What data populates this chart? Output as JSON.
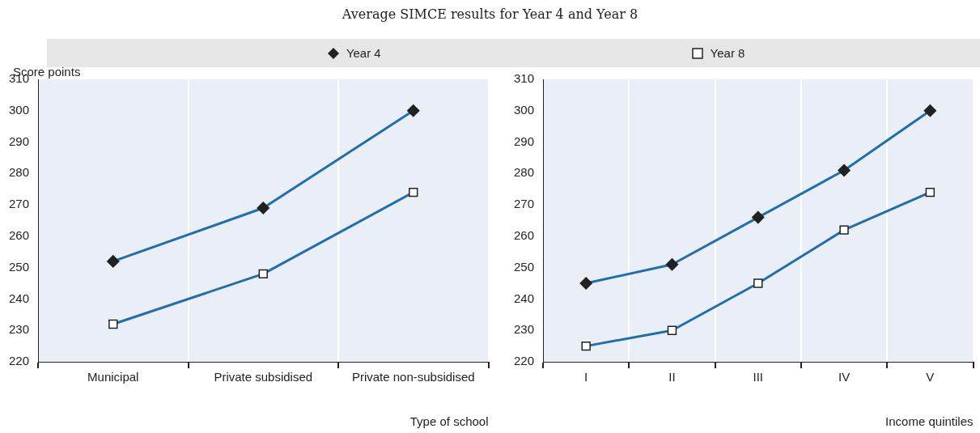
{
  "chart_data": [
    {
      "type": "line",
      "title": "Average SIMCE results for Year 4 and Year 8",
      "ylabel": "Score points",
      "xlabel": "Type of school",
      "categories": [
        "Municipal",
        "Private subsidised",
        "Private non-subsidised"
      ],
      "series": [
        {
          "name": "Year 4",
          "color": "#1f6fad",
          "marker": "diamond",
          "values": [
            252,
            269,
            300
          ]
        },
        {
          "name": "Year 8",
          "color": "#1f6fad",
          "marker": "square",
          "values": [
            232,
            248,
            274
          ]
        }
      ],
      "ylim": [
        220,
        310
      ],
      "yticks": [
        220,
        230,
        240,
        250,
        260,
        270,
        280,
        290,
        300,
        310
      ],
      "grid": "x",
      "legend": "top"
    },
    {
      "type": "line",
      "xlabel": "Income quintiles",
      "categories": [
        "I",
        "II",
        "III",
        "IV",
        "V"
      ],
      "series": [
        {
          "color": "#1f6fad",
          "marker": "diamond",
          "values": [
            245,
            251,
            266,
            281,
            300
          ]
        },
        {
          "color": "#1f6fad",
          "marker": "square",
          "values": [
            225,
            230,
            245,
            262,
            274
          ]
        }
      ],
      "ylim": [
        220,
        310
      ],
      "yticks": [
        220,
        230,
        240,
        250,
        260,
        270,
        280,
        290,
        300,
        310
      ],
      "grid": "x",
      "legend": false
    }
  ]
}
